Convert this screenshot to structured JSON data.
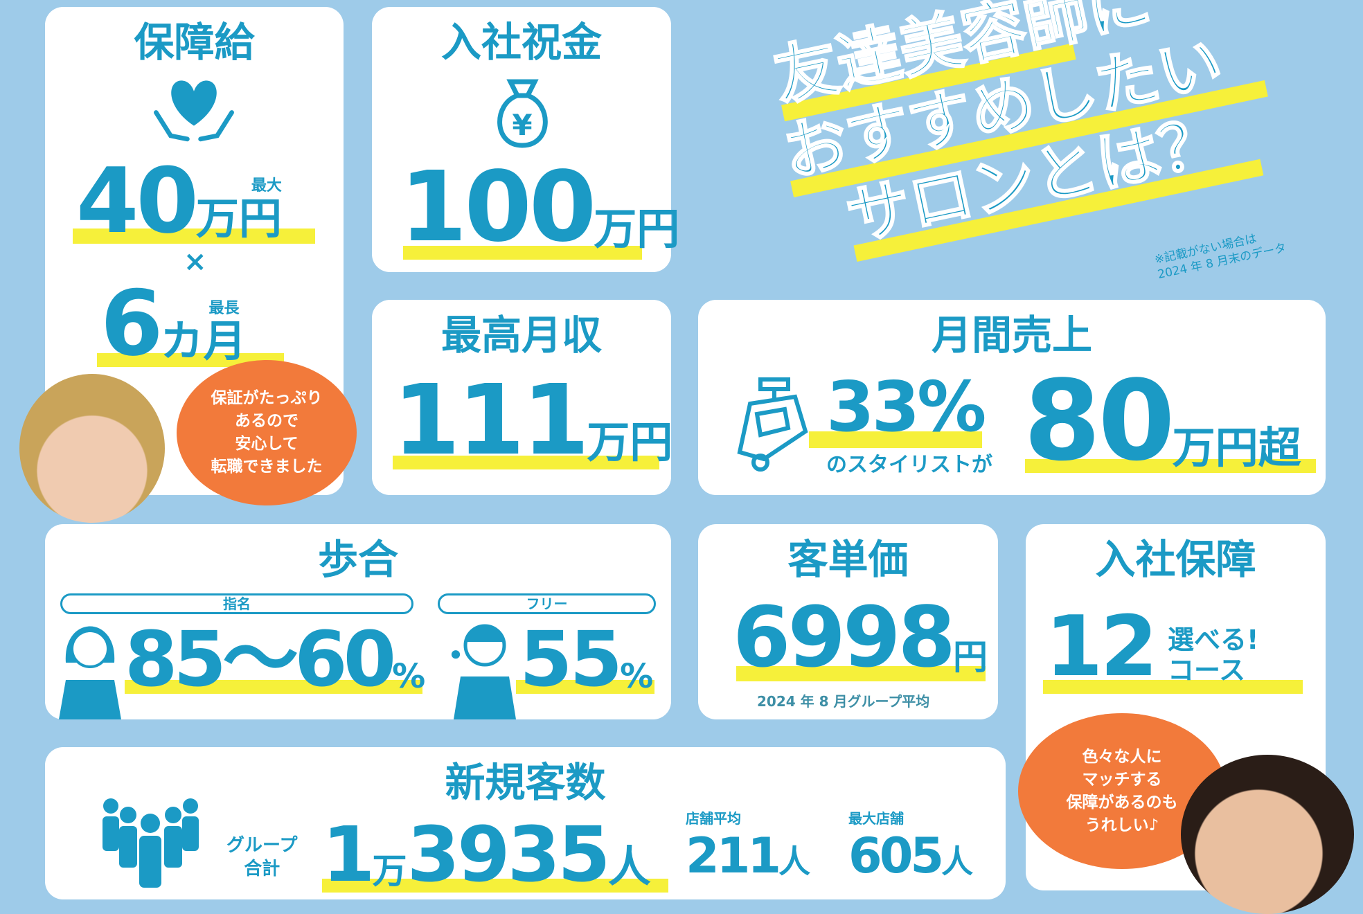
{
  "colors": {
    "background": "#9ecbe9",
    "accent": "#1b9ac5",
    "highlight": "#f6f03a",
    "bubble": "#f27a3b"
  },
  "guarantee": {
    "title": "保障給",
    "icon": "heart-hands-icon",
    "max_label": "最大",
    "amount": "40",
    "amount_unit": "万円",
    "times": "×",
    "longest_label": "最長",
    "months": "6",
    "months_unit": "カ月"
  },
  "bubble_left": {
    "lines": [
      "保証がたっぷり",
      "あるので",
      "安心して",
      "転職できました"
    ]
  },
  "signing_bonus": {
    "title": "入社祝金",
    "icon": "money-bag-yen-icon",
    "amount": "100",
    "unit": "万円"
  },
  "headline": {
    "lines": [
      "友達美容師に",
      "おすすめしたい",
      "サロンとは？"
    ],
    "note_lines": [
      "※記載がない場合は",
      "2024 年 8 月末のデータ"
    ]
  },
  "max_income": {
    "title": "最高月収",
    "amount": "111",
    "unit": "万円"
  },
  "monthly_sales": {
    "title": "月間売上",
    "icon": "cash-register-icon",
    "percent": "33%",
    "percent_caption": "のスタイリストが",
    "amount": "80",
    "unit": "万円超"
  },
  "commission": {
    "title": "歩合",
    "nominated_label": "指名",
    "free_label": "フリー",
    "nominated_value": "85〜60",
    "nominated_unit": "%",
    "separator": "・",
    "free_value": "55",
    "free_unit": "%"
  },
  "avg_spend": {
    "title": "客単価",
    "amount": "6998",
    "unit": "円",
    "caption": "2024 年 8 月グループ平均"
  },
  "entry_guarantee": {
    "title": "入社保障",
    "count": "12",
    "label_lines": [
      "選べる!",
      "コース"
    ]
  },
  "bubble_right": {
    "lines": [
      "色々な人に",
      "マッチする",
      "保障があるのも",
      "うれしい♪"
    ]
  },
  "new_customers": {
    "title": "新規客数",
    "icon": "people-group-icon",
    "group_label_lines": [
      "グループ",
      "合計"
    ],
    "group_total_a": "1",
    "group_total_man": "万",
    "group_total_b": "3935",
    "group_total_unit": "人",
    "store_avg_label": "店舗平均",
    "store_avg": "211",
    "store_avg_unit": "人",
    "max_store_label": "最大店舗",
    "max_store": "605",
    "max_store_unit": "人"
  }
}
